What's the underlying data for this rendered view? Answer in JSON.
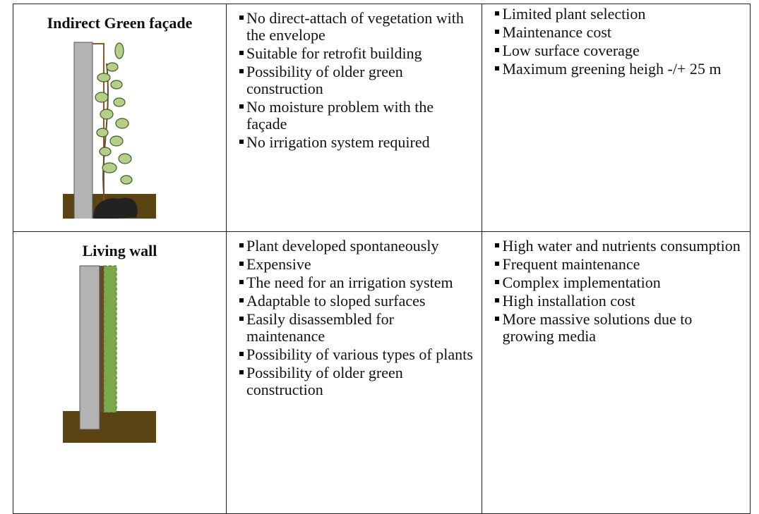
{
  "table": {
    "rows": [
      {
        "name": "Indirect Green façade",
        "advantages": [
          "No direct-attach of vegetation with the envelope",
          "Suitable for retrofit building",
          "Possibility of older green construction",
          "No moisture problem with the façade",
          "No irrigation system required"
        ],
        "disadvantages": [
          "Limited plant selection",
          "Maintenance cost",
          "Low surface coverage",
          "Maximum greening heigh -/+ 25 m"
        ]
      },
      {
        "name": "Living wall",
        "advantages": [
          "Plant developed spontaneously",
          "Expensive",
          "The need for an irrigation system",
          "Adaptable to sloped surfaces",
          "Easily disassembled for maintenance",
          "Possibility of various types of plants",
          "Possibility of older green construction"
        ],
        "disadvantages": [
          "High water and nutrients consumption",
          "Frequent maintenance",
          "Complex implementation",
          "High installation cost",
          "More massive solutions due to growing media"
        ]
      }
    ]
  }
}
